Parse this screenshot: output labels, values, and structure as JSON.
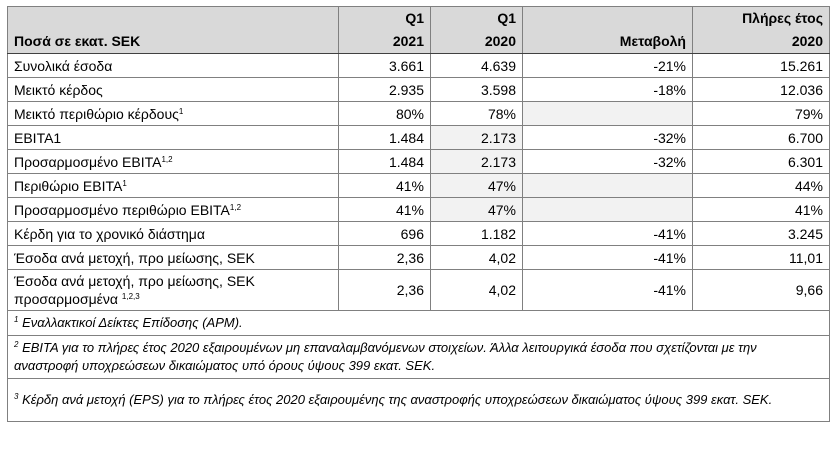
{
  "header": {
    "label": "Ποσά σε εκατ. SEK",
    "q1_2021_top": "Q1",
    "q1_2021_bottom": "2021",
    "q1_2020_top": "Q1",
    "q1_2020_bottom": "2020",
    "change": "Μεταβολή",
    "fy_top": "Πλήρες έτος",
    "fy_bottom": "2020"
  },
  "rows": [
    {
      "label": "Συνολικά έσοδα",
      "sup": "",
      "q1_2021": "3.661",
      "q1_2020": "4.639",
      "change": "-21%",
      "fy_2020": "15.261"
    },
    {
      "label": "Μεικτό κέρδος",
      "sup": "",
      "q1_2021": "2.935",
      "q1_2020": "3.598",
      "change": "-18%",
      "fy_2020": "12.036"
    },
    {
      "label": "Μεικτό περιθώριο κέρδους",
      "sup": "1",
      "q1_2021": "80%",
      "q1_2020": "78%",
      "change": "",
      "fy_2020": "79%"
    },
    {
      "label": "EBITA1",
      "sup": "",
      "q1_2021": "1.484",
      "q1_2020": "2.173",
      "change": "-32%",
      "fy_2020": "6.700"
    },
    {
      "label": "Προσαρμοσμένο EBITA",
      "sup": "1,2",
      "q1_2021": "1.484",
      "q1_2020": "2.173",
      "change": "-32%",
      "fy_2020": "6.301"
    },
    {
      "label": "Περιθώριο EBITA",
      "sup": "1",
      "q1_2021": "41%",
      "q1_2020": "47%",
      "change": "",
      "fy_2020": "44%"
    },
    {
      "label": "Προσαρμοσμένο περιθώριο EBITA",
      "sup": "1,2",
      "q1_2021": "41%",
      "q1_2020": "47%",
      "change": "",
      "fy_2020": "41%"
    },
    {
      "label": "Κέρδη για το χρονικό διάστημα",
      "sup": "",
      "q1_2021": "696",
      "q1_2020": "1.182",
      "change": "-41%",
      "fy_2020": "3.245"
    },
    {
      "label": "Έσοδα ανά μετοχή, προ μείωσης, SEK",
      "sup": "",
      "q1_2021": "2,36",
      "q1_2020": "4,02",
      "change": "-41%",
      "fy_2020": "11,01"
    },
    {
      "label_line1": "Έσοδα ανά μετοχή, προ μείωσης, SEK",
      "label_line2": "προσαρμοσμένα",
      "sup": "1,2,3",
      "q1_2021": "2,36",
      "q1_2020": "4,02",
      "change": "-41%",
      "fy_2020": "9,66"
    }
  ],
  "footnotes": [
    {
      "mark": "1",
      "text": " Εναλλακτικοί Δείκτες Επίδοσης (APM)."
    },
    {
      "mark": "2",
      "text": " EBITA για το πλήρες έτος 2020 εξαιρουμένων μη επαναλαμβανόμενων στοιχείων. Άλλα λειτουργικά έσοδα που σχετίζονται με την αναστροφή υποχρεώσεων δικαιώματος υπό όρους ύψους 399 εκατ. SEK."
    },
    {
      "mark": "3",
      "text": " Κέρδη ανά μετοχή (EPS) για το πλήρες έτος 2020 εξαιρουμένης της αναστροφής υποχρεώσεων δικαιώματος ύψους 399 εκατ. SEK."
    }
  ]
}
